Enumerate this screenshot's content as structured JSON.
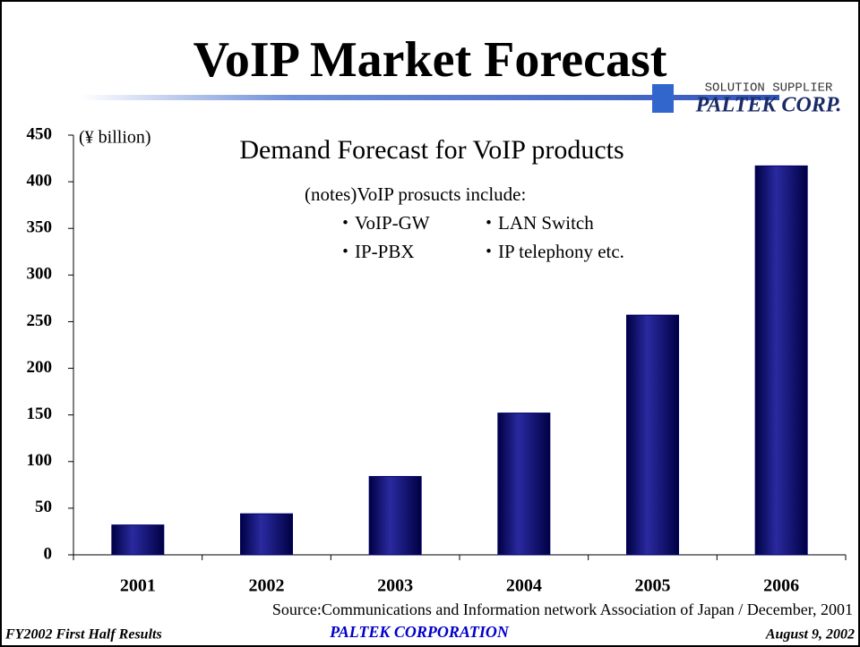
{
  "title": "VoIP Market Forecast",
  "logo": {
    "tagline": "SOLUTION SUPPLIER",
    "name": "PALTEK CORP."
  },
  "chart_data": {
    "type": "bar",
    "title": "Demand Forecast for VoIP products",
    "y_label": "(¥ billion)",
    "notes_heading": "(notes)VoIP prosucts include:",
    "notes": [
      "・VoIP-GW",
      "・LAN Switch",
      "・IP-PBX",
      "・IP telephony   etc."
    ],
    "source": "Source:Communications and Information network Association of Japan / December, 2001",
    "categories": [
      "2001",
      "2002",
      "2003",
      "2004",
      "2005",
      "2006"
    ],
    "values": [
      32,
      44,
      84,
      152,
      257,
      417
    ],
    "color": "#000066",
    "ylim": [
      0,
      450
    ],
    "yticks": [
      0,
      50,
      100,
      150,
      200,
      250,
      300,
      350,
      400,
      450
    ]
  },
  "footer": {
    "left": "FY2002 First Half Results",
    "center": "PALTEK CORPORATION",
    "right": "August 9, 2002"
  }
}
